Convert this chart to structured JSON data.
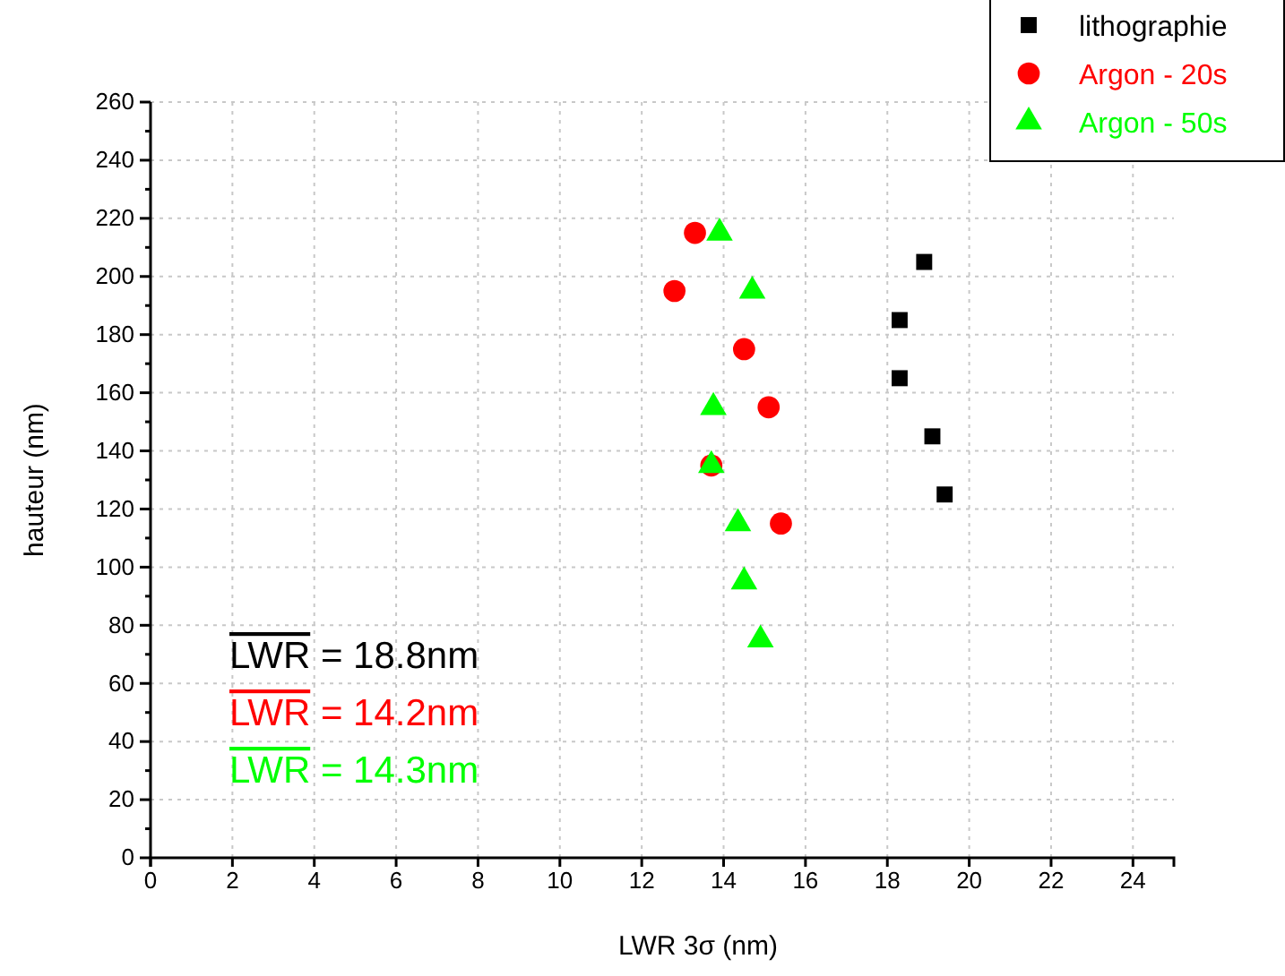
{
  "chart_data": {
    "type": "scatter",
    "xlabel": "LWR 3σ (nm)",
    "ylabel": "hauteur (nm)",
    "xlim": [
      0,
      25
    ],
    "xticks": [
      0,
      2,
      4,
      6,
      8,
      10,
      12,
      14,
      16,
      18,
      20,
      22,
      24
    ],
    "ylim": [
      0,
      260
    ],
    "yticks": [
      0,
      {
        "value": 10,
        "label": null
      },
      20,
      {
        "value": 30,
        "label": null
      },
      40,
      {
        "value": 50,
        "label": null
      },
      60,
      {
        "value": 70,
        "label": null
      },
      80,
      {
        "value": 90,
        "label": null
      },
      100,
      {
        "value": 110,
        "label": null
      },
      120,
      {
        "value": 130,
        "label": null
      },
      140,
      {
        "value": 150,
        "label": null
      },
      160,
      {
        "value": 170,
        "label": null
      },
      180,
      {
        "value": 190,
        "label": null
      },
      200,
      {
        "value": 210,
        "label": null
      },
      220,
      {
        "value": 230,
        "label": null
      },
      240,
      {
        "value": 250,
        "label": null
      },
      260
    ],
    "grid": true,
    "legend": "top right",
    "series": [
      {
        "name": "lithographie",
        "color": "#000000",
        "marker": "square",
        "x": [
          18.9,
          18.3,
          18.3,
          19.1,
          19.4
        ],
        "values": [
          205,
          185,
          165,
          145,
          125
        ]
      },
      {
        "name": "Argon - 20s",
        "color": "#ff0000",
        "marker": "circle",
        "x": [
          13.3,
          12.8,
          14.5,
          15.1,
          13.7,
          15.4
        ],
        "values": [
          215,
          195,
          175,
          155,
          135,
          115
        ]
      },
      {
        "name": "Argon - 50s",
        "color": "#00ff00",
        "marker": "triangle",
        "x": [
          13.9,
          14.7,
          13.75,
          13.7,
          14.35,
          14.5,
          14.9
        ],
        "values": [
          215,
          195,
          155,
          135,
          115,
          95,
          75
        ]
      }
    ],
    "annotations": [
      "LWR = 18.8nm",
      "LWR = 14.2nm",
      "LWR = 14.3nm"
    ]
  }
}
